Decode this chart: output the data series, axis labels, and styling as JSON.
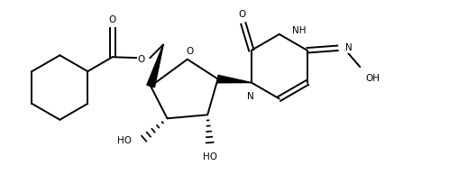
{
  "background_color": "#ffffff",
  "line_color": "#000000",
  "line_width": 1.4,
  "font_size": 7.5,
  "figsize": [
    5.08,
    1.94
  ],
  "dpi": 100,
  "xlim": [
    0,
    10.16
  ],
  "ylim": [
    0,
    3.88
  ]
}
